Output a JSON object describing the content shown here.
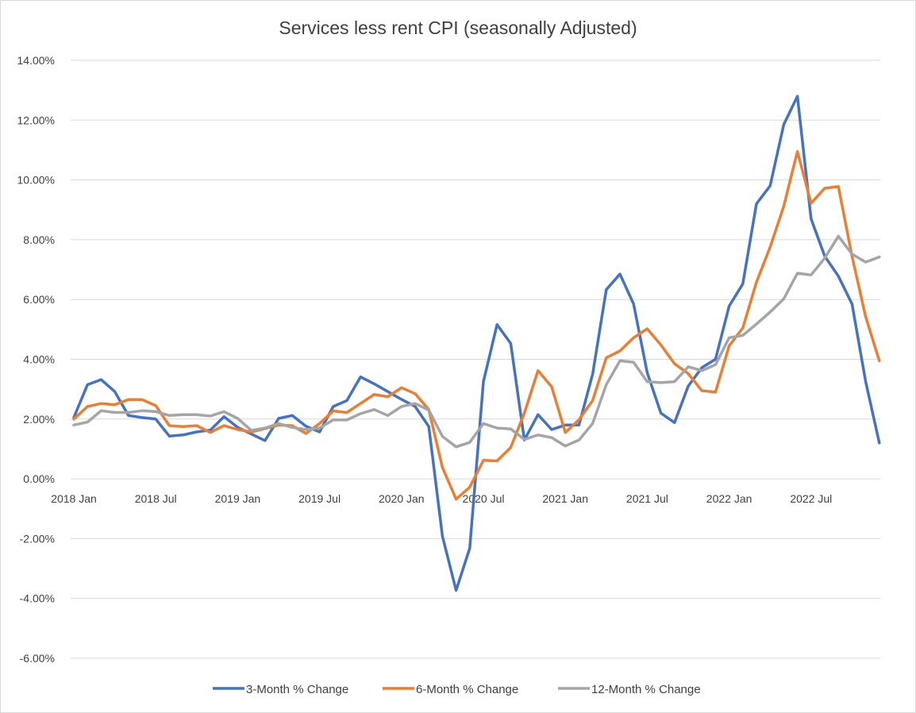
{
  "chart_data": {
    "type": "line",
    "title": "Services less rent CPI (seasonally Adjusted)",
    "xlabel": "",
    "ylabel": "",
    "ylim": [
      -6,
      14
    ],
    "y_ticks": [
      14,
      12,
      10,
      8,
      6,
      4,
      2,
      0,
      -2,
      -4,
      -6
    ],
    "y_tick_labels": [
      "14.00%",
      "12.00%",
      "10.00%",
      "8.00%",
      "6.00%",
      "4.00%",
      "2.00%",
      "0.00%",
      "-2.00%",
      "-4.00%",
      "-6.00%"
    ],
    "x_ticks": [
      {
        "index": 0,
        "label": "2018 Jan"
      },
      {
        "index": 6,
        "label": "2018 Jul"
      },
      {
        "index": 12,
        "label": "2019 Jan"
      },
      {
        "index": 18,
        "label": "2019 Jul"
      },
      {
        "index": 24,
        "label": "2020 Jan"
      },
      {
        "index": 30,
        "label": "2020 Jul"
      },
      {
        "index": 36,
        "label": "2021 Jan"
      },
      {
        "index": 42,
        "label": "2021 Jul"
      },
      {
        "index": 48,
        "label": "2022 Jan"
      },
      {
        "index": 54,
        "label": "2022 Jul"
      }
    ],
    "n_points": 60,
    "grid": true,
    "legend_position": "bottom",
    "series": [
      {
        "name": "3-Month % Change",
        "color": "#4472C4",
        "values": [
          2.05,
          3.15,
          3.32,
          2.92,
          2.12,
          2.05,
          2.0,
          1.43,
          1.47,
          1.57,
          1.63,
          2.08,
          1.72,
          1.5,
          1.28,
          2.02,
          2.12,
          1.76,
          1.57,
          2.42,
          2.62,
          3.41,
          3.18,
          2.92,
          2.66,
          2.42,
          1.75,
          -1.92,
          -3.73,
          -2.32,
          3.25,
          5.16,
          4.53,
          1.3,
          2.15,
          1.65,
          1.8,
          1.8,
          3.5,
          6.33,
          6.85,
          5.85,
          3.55,
          2.2,
          1.88,
          3.1,
          3.72,
          4.0,
          5.78,
          6.52,
          9.2,
          9.8,
          11.85,
          12.8,
          8.7,
          7.45,
          6.78,
          5.85,
          3.25,
          1.2
        ]
      },
      {
        "name": "6-Month % Change",
        "color": "#ED7D31",
        "values": [
          2.0,
          2.42,
          2.52,
          2.48,
          2.65,
          2.65,
          2.45,
          1.78,
          1.75,
          1.78,
          1.55,
          1.78,
          1.65,
          1.57,
          1.68,
          1.8,
          1.78,
          1.52,
          1.85,
          2.27,
          2.22,
          2.52,
          2.82,
          2.75,
          3.05,
          2.85,
          2.32,
          0.38,
          -0.68,
          -0.28,
          0.62,
          0.6,
          1.05,
          2.2,
          3.62,
          3.08,
          1.55,
          1.98,
          2.62,
          4.05,
          4.28,
          4.72,
          5.02,
          4.48,
          3.85,
          3.52,
          2.95,
          2.9,
          4.45,
          5.05,
          6.58,
          7.75,
          9.12,
          10.95,
          9.22,
          9.72,
          9.78,
          7.45,
          5.42,
          3.95
        ]
      },
      {
        "name": "12-Month % Change",
        "color": "#A5A5A5",
        "values": [
          1.8,
          1.9,
          2.28,
          2.22,
          2.22,
          2.28,
          2.25,
          2.12,
          2.15,
          2.15,
          2.1,
          2.25,
          2.02,
          1.62,
          1.7,
          1.85,
          1.72,
          1.65,
          1.7,
          1.97,
          1.97,
          2.18,
          2.32,
          2.12,
          2.42,
          2.52,
          2.3,
          1.42,
          1.07,
          1.22,
          1.85,
          1.7,
          1.67,
          1.32,
          1.47,
          1.38,
          1.1,
          1.3,
          1.85,
          3.15,
          3.95,
          3.9,
          3.25,
          3.22,
          3.25,
          3.75,
          3.62,
          3.82,
          4.72,
          4.8,
          5.18,
          5.58,
          6.02,
          6.88,
          6.82,
          7.38,
          8.12,
          7.52,
          7.25,
          7.42
        ]
      }
    ]
  }
}
